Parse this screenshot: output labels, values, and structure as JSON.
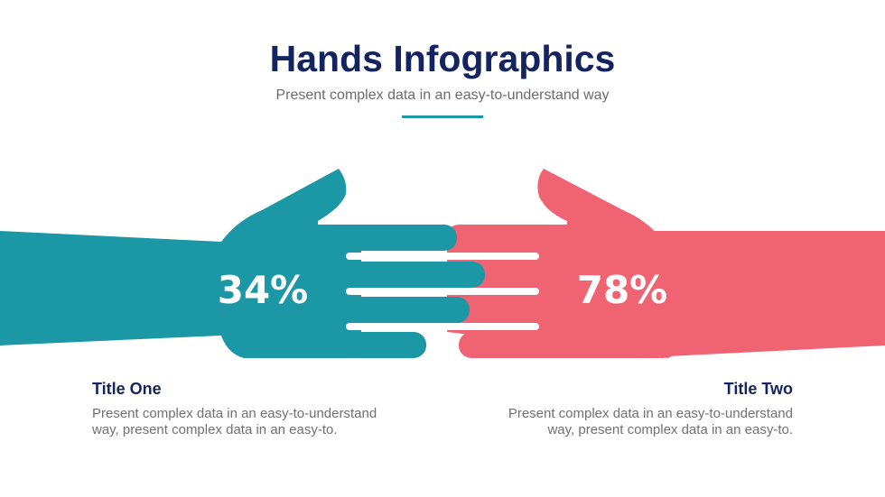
{
  "title": "Hands Infographics",
  "subtitle": "Present complex data in an easy-to-understand way",
  "colors": {
    "left": "#1c97a6",
    "right": "#ef6372",
    "heading": "#13245e"
  },
  "left": {
    "value": "34%",
    "title": "Title One",
    "text": "Present complex data in an easy-to-understand way, present complex data in an easy-to."
  },
  "right": {
    "value": "78%",
    "title": "Title Two",
    "text": "Present complex data in an easy-to-understand way, present complex data in an easy-to."
  }
}
